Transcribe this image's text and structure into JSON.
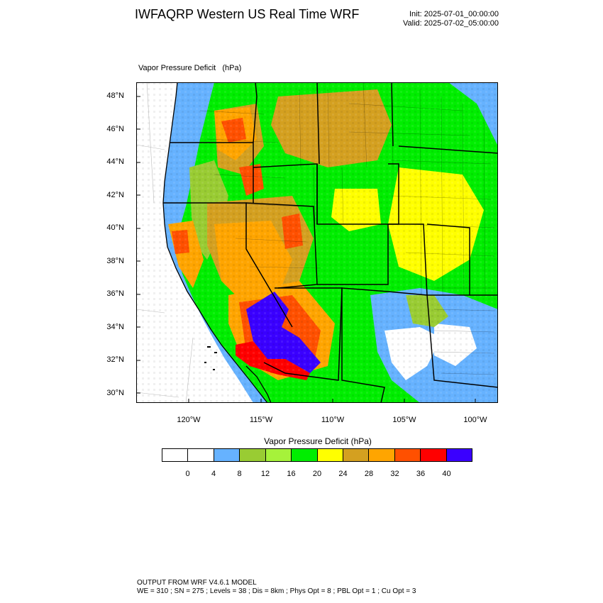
{
  "header": {
    "title": "IWFAQRP Western US Real Time WRF",
    "init": "Init: 2025-07-01_00:00:00",
    "valid": "Valid: 2025-07-02_05:00:00"
  },
  "map": {
    "subtitle": "Vapor Pressure Deficit   (hPa)",
    "lat_labels": [
      "48°N",
      "46°N",
      "44°N",
      "42°N",
      "40°N",
      "38°N",
      "36°N",
      "34°N",
      "32°N",
      "30°N"
    ],
    "lon_labels": [
      "120°W",
      "115°W",
      "110°W",
      "105°W",
      "100°W"
    ]
  },
  "legend": {
    "title": "Vapor Pressure Deficit  (hPa)",
    "labels": [
      "0",
      "4",
      "8",
      "12",
      "16",
      "20",
      "24",
      "28",
      "32",
      "36",
      "40"
    ],
    "colors": [
      "#ffffff",
      "#ffffff",
      "#66b2ff",
      "#99cc33",
      "#a6f23a",
      "#00ee00",
      "#ffff00",
      "#d4a020",
      "#ffa500",
      "#ff5000",
      "#ff0000",
      "#3a00ff"
    ]
  },
  "footer": {
    "line1": "OUTPUT FROM WRF V4.6.1 MODEL",
    "line2": "WE = 310 ; SN = 275 ; Levels = 38 ; Dis = 8km ; Phys Opt = 8 ; PBL Opt = 1 ; Cu Opt = 3"
  }
}
